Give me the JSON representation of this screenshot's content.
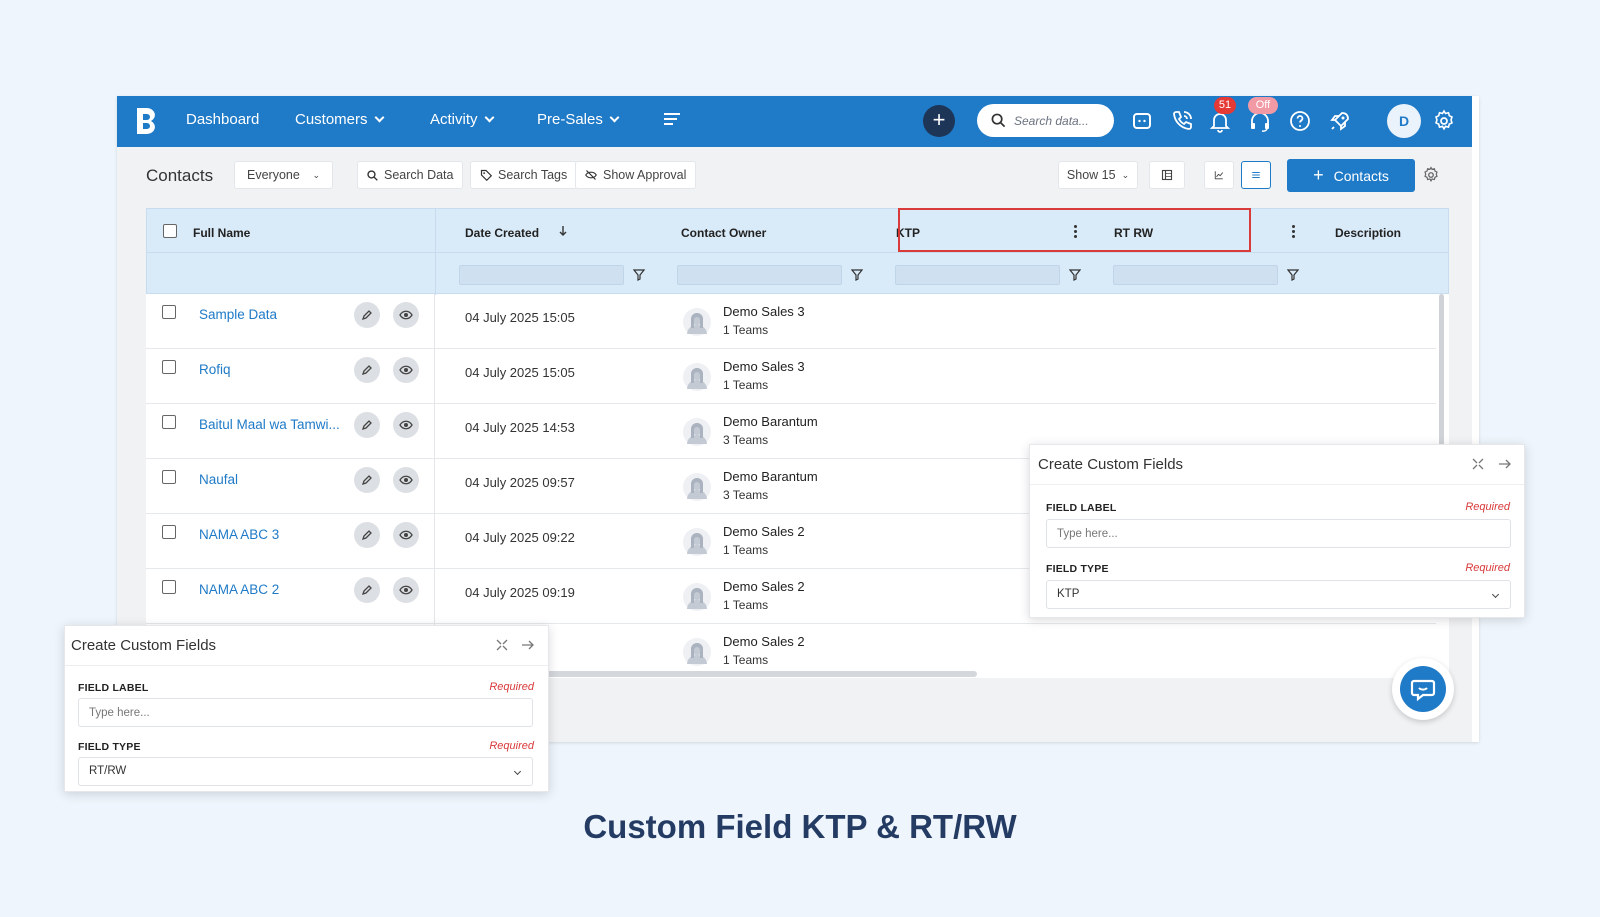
{
  "nav": {
    "items": [
      {
        "label": "Dashboard",
        "dropdown": false
      },
      {
        "label": "Customers",
        "dropdown": true
      },
      {
        "label": "Activity",
        "dropdown": true
      },
      {
        "label": "Pre-Sales",
        "dropdown": true
      }
    ],
    "search_placeholder": "Search data...",
    "notification_count": "51",
    "status_badge": "Off",
    "avatar_initial": "D",
    "brand_color": "#1f7ac7"
  },
  "toolbar": {
    "title": "Contacts",
    "view_filter": "Everyone",
    "search_data": "Search Data",
    "search_tags": "Search Tags",
    "show_approval": "Show Approval",
    "show_count": "Show 15",
    "add_contacts": "Contacts"
  },
  "table": {
    "headers": {
      "full_name": "Full Name",
      "date_created": "Date Created",
      "contact_owner": "Contact Owner",
      "ktp": "KTP",
      "rt_rw": "RT RW",
      "description": "Description"
    },
    "rows": [
      {
        "name": "Sample Data",
        "date": "04 July 2025 15:05",
        "owner": "Demo Sales 3",
        "teams": "1 Teams"
      },
      {
        "name": "Rofiq",
        "date": "04 July 2025 15:05",
        "owner": "Demo Sales 3",
        "teams": "1 Teams"
      },
      {
        "name": "Baitul Maal wa Tamwi...",
        "date": "04 July 2025 14:53",
        "owner": "Demo Barantum",
        "teams": "3 Teams"
      },
      {
        "name": "Naufal",
        "date": "04 July 2025 09:57",
        "owner": "Demo Barantum",
        "teams": "3 Teams"
      },
      {
        "name": "NAMA ABC 3",
        "date": "04 July 2025 09:22",
        "owner": "Demo Sales 2",
        "teams": "1 Teams"
      },
      {
        "name": "NAMA ABC 2",
        "date": "04 July 2025 09:19",
        "owner": "Demo Sales 2",
        "teams": "1 Teams"
      },
      {
        "name": "",
        "date": "09:17",
        "owner": "Demo Sales 2",
        "teams": "1 Teams"
      }
    ]
  },
  "panel_right": {
    "title": "Create Custom Fields",
    "field_label": "FIELD LABEL",
    "required": "Required",
    "label_placeholder": "Type here...",
    "field_type": "FIELD TYPE",
    "type_value": "KTP"
  },
  "panel_left": {
    "title": "Create Custom Fields",
    "field_label": "FIELD LABEL",
    "required": "Required",
    "label_placeholder": "Type here...",
    "field_type": "FIELD TYPE",
    "type_value": "RT/RW"
  },
  "caption": "Custom Field KTP & RT/RW"
}
